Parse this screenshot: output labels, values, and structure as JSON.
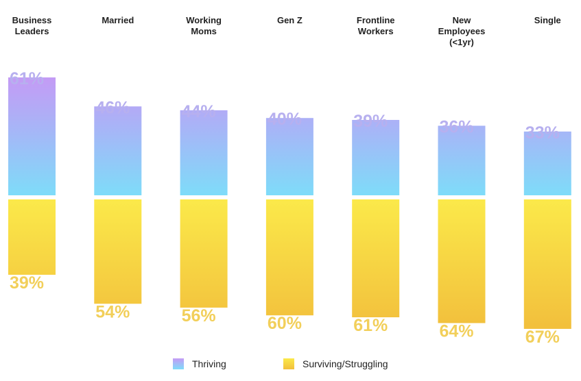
{
  "chart_data": {
    "type": "bar",
    "categories": [
      [
        "Business",
        "Leaders"
      ],
      [
        "Married"
      ],
      [
        "Working",
        "Moms"
      ],
      [
        "Gen Z"
      ],
      [
        "Frontline",
        "Workers"
      ],
      [
        "New",
        "Employees",
        "(<1yr)"
      ],
      [
        "Single"
      ]
    ],
    "series": [
      {
        "name": "Thriving",
        "values": [
          61,
          46,
          44,
          40,
          39,
          36,
          33
        ],
        "labels": [
          "61%",
          "46%",
          "44%",
          "40%",
          "39%",
          "36%",
          "33%"
        ]
      },
      {
        "name": "Surviving/Struggling",
        "values": [
          39,
          54,
          56,
          60,
          61,
          64,
          67
        ],
        "labels": [
          "39%",
          "54%",
          "56%",
          "60%",
          "61%",
          "64%",
          "67%"
        ]
      }
    ],
    "legend_position": "bottom",
    "colors": {
      "thriving_top": "#c49bf5",
      "thriving_mid": "#a6b6f7",
      "thriving_bottom": "#7edcf9",
      "thriving_label": "#b7b0ef",
      "surviving_top": "#fbe94a",
      "surviving_bottom": "#f2bf3c",
      "surviving_label": "#f2cf5a",
      "category_text": "#222222"
    }
  }
}
